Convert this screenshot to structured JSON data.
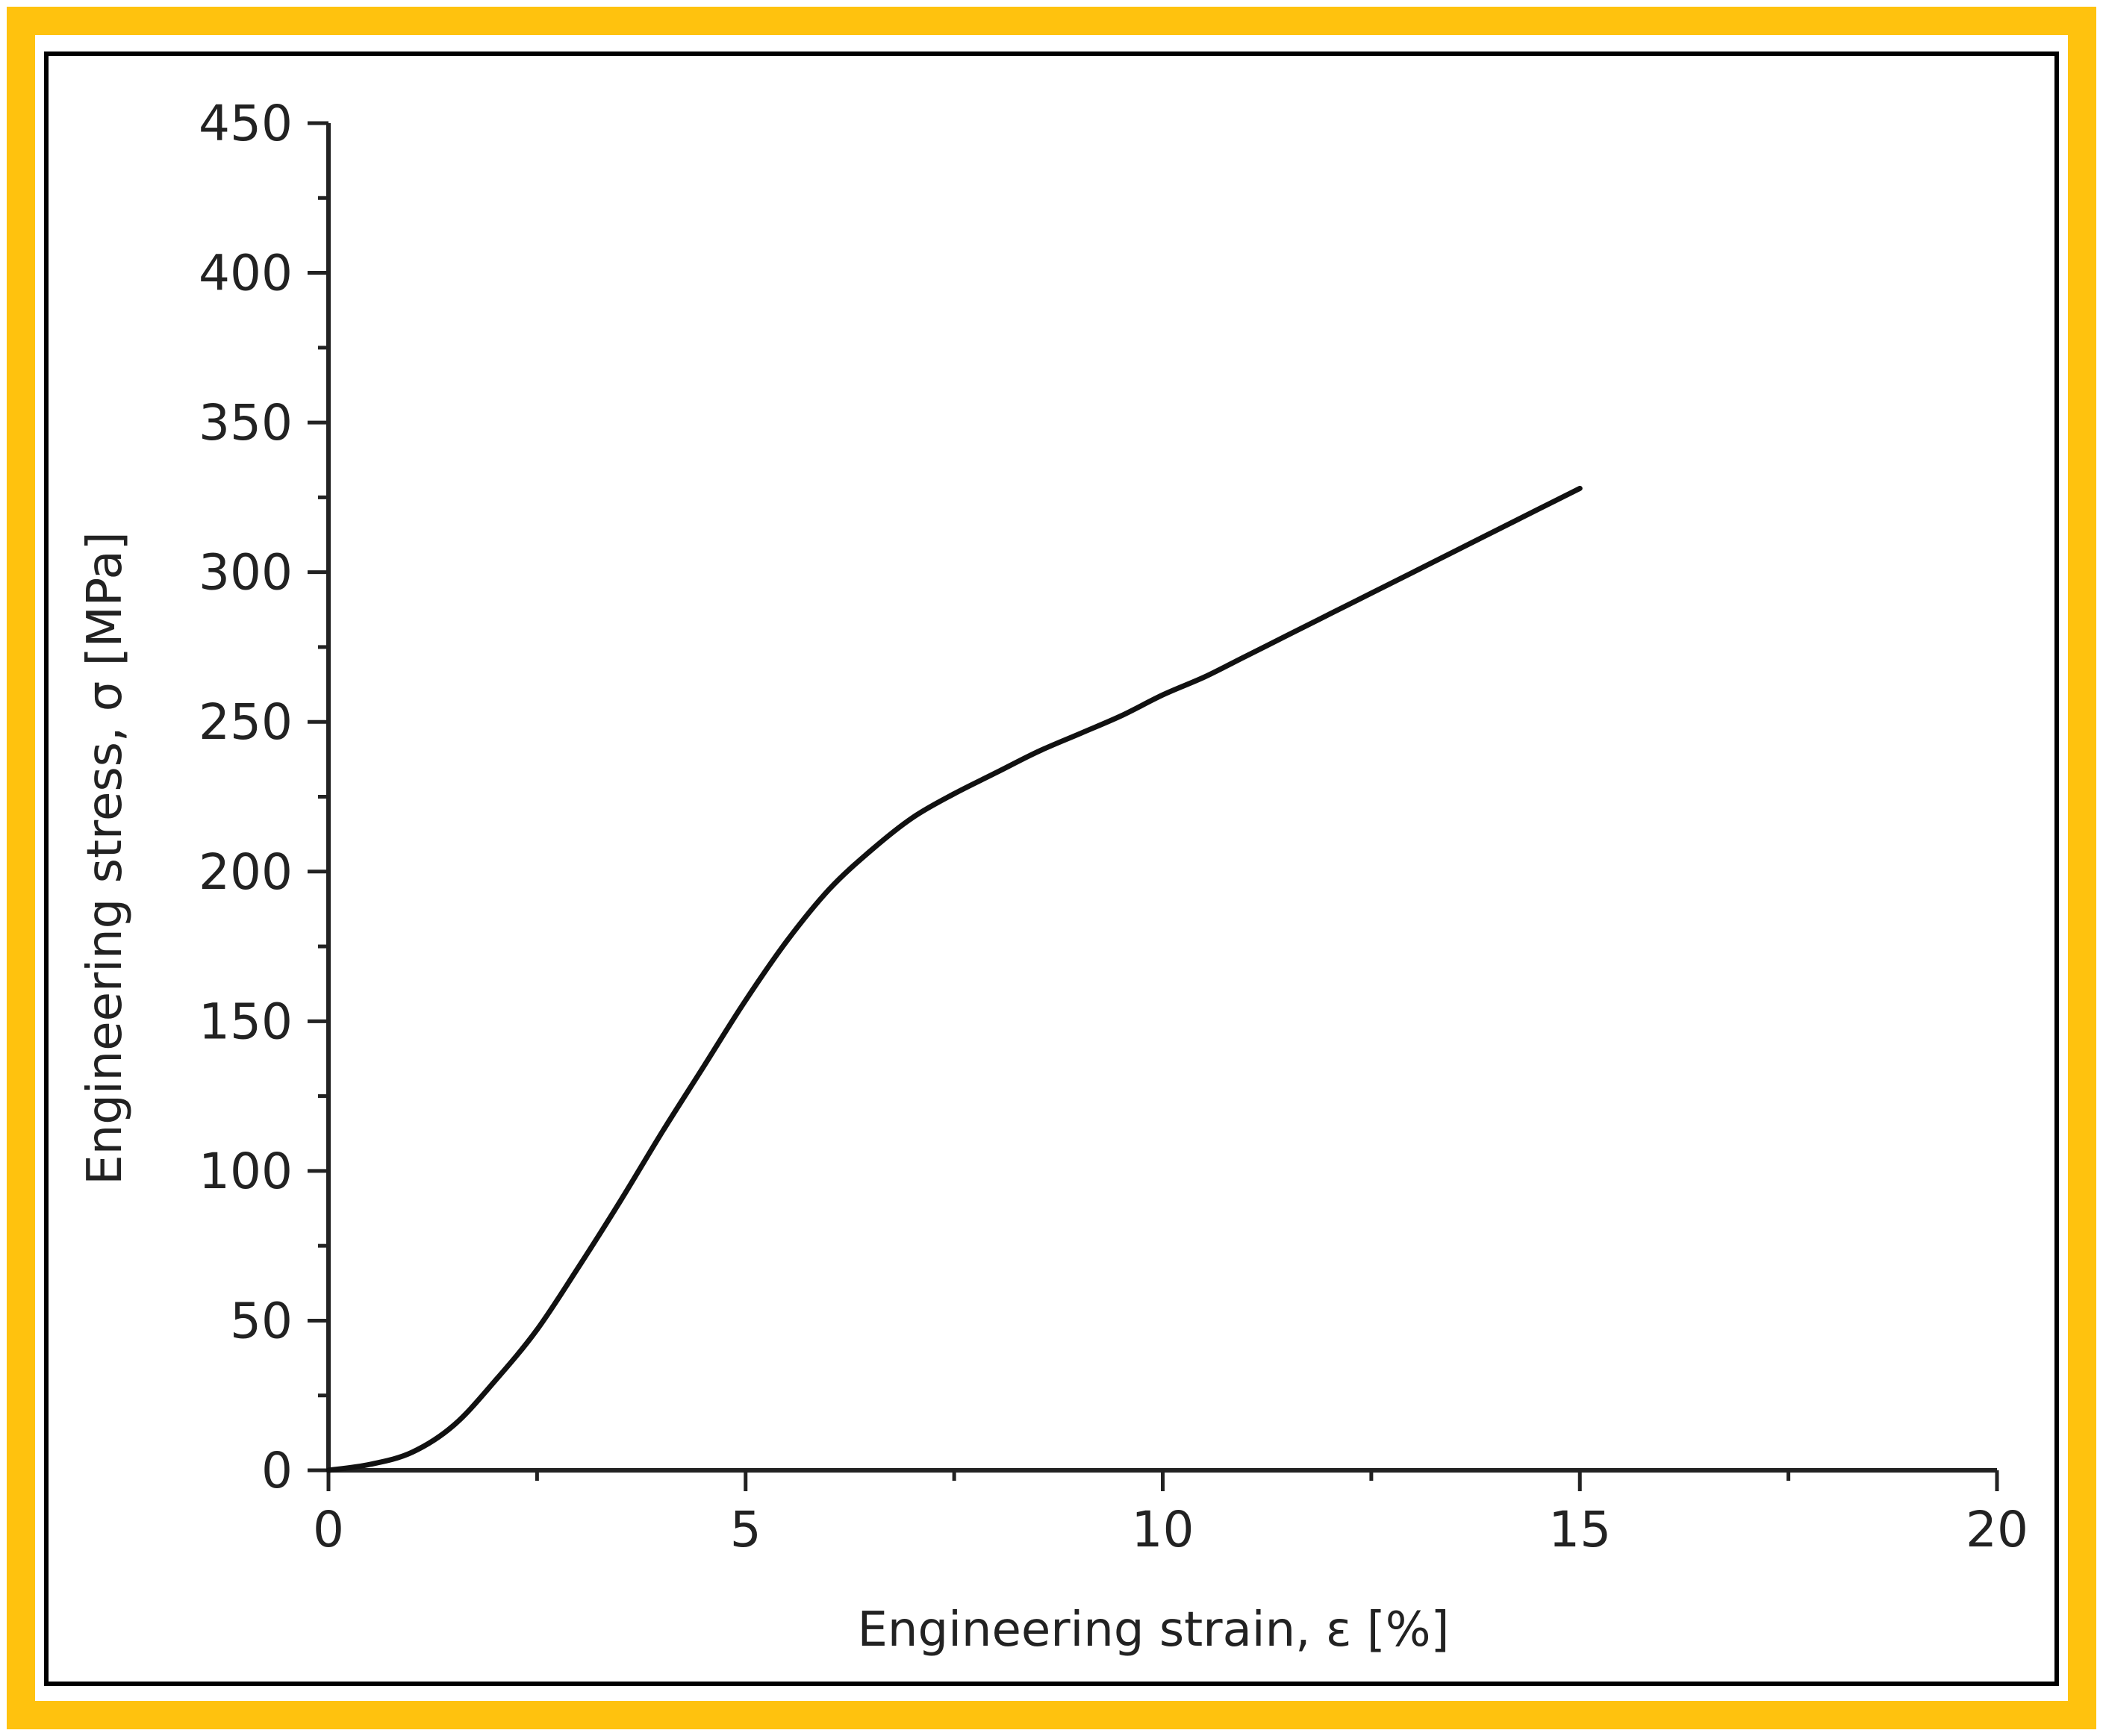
{
  "frame": {
    "outer_color": "#FFC20E",
    "inner_border_color": "#000000",
    "background": "#FFFFFF"
  },
  "chart_data": {
    "type": "line",
    "title": "",
    "xlabel": "Engineering strain, ε [%]",
    "ylabel": "Engineering stress, σ [MPa]",
    "xlim": [
      0,
      20
    ],
    "ylim": [
      0,
      450
    ],
    "x_ticks": [
      0,
      5,
      10,
      15,
      20
    ],
    "y_ticks": [
      0,
      50,
      100,
      150,
      200,
      250,
      300,
      350,
      400,
      450
    ],
    "x_minor_step": 2.5,
    "y_minor_step": 25,
    "grid": false,
    "legend": "none",
    "line_color": "#111111",
    "series": [
      {
        "x": [
          0,
          0.5,
          1,
          1.5,
          2,
          2.5,
          3,
          3.5,
          4,
          4.5,
          5,
          5.5,
          6,
          6.5,
          7,
          7.5,
          8,
          8.5,
          9,
          9.5,
          10,
          10.5,
          11,
          11.5,
          12,
          12.5,
          13,
          13.5,
          14,
          14.5,
          15
        ],
        "y": [
          0,
          2,
          6,
          15,
          30,
          47,
          68,
          90,
          113,
          135,
          157,
          177,
          194,
          207,
          218,
          226,
          233,
          240,
          246,
          252,
          259,
          265,
          272,
          279,
          286,
          293,
          300,
          307,
          314,
          321,
          328
        ]
      }
    ]
  }
}
